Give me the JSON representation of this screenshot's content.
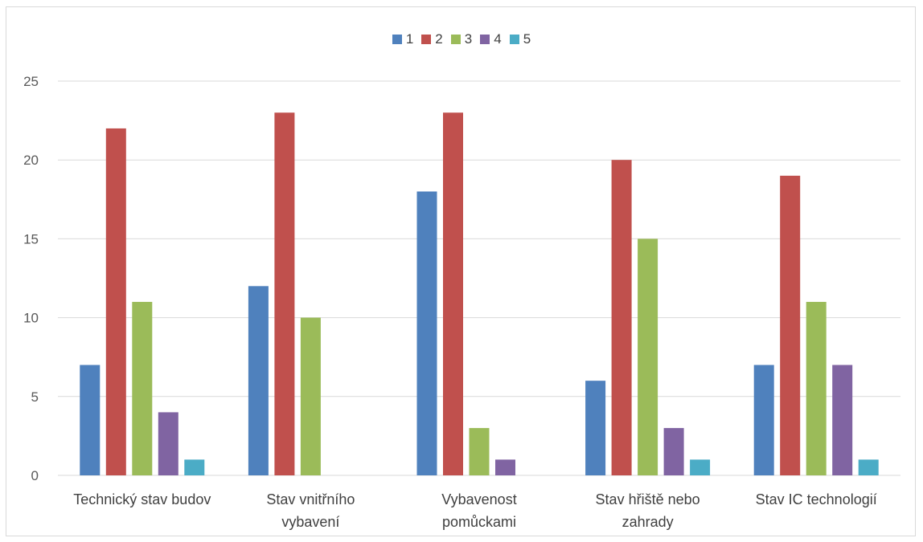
{
  "chart_data": {
    "type": "bar",
    "title": "",
    "xlabel": "",
    "ylabel": "",
    "ylim": [
      0,
      25
    ],
    "yticks": [
      0,
      5,
      10,
      15,
      20,
      25
    ],
    "grid": true,
    "legend_position": "top",
    "categories": [
      [
        "Technický stav budov"
      ],
      [
        "Stav vnitřního",
        "vybavení"
      ],
      [
        "Vybavenost",
        "pomůckami"
      ],
      [
        "Stav hřiště nebo",
        "zahrady"
      ],
      [
        "Stav IC technologií"
      ]
    ],
    "series": [
      {
        "name": "1",
        "color": "#4f81bd",
        "values": [
          7,
          12,
          18,
          6,
          7
        ]
      },
      {
        "name": "2",
        "color": "#c0504d",
        "values": [
          22,
          23,
          23,
          20,
          19
        ]
      },
      {
        "name": "3",
        "color": "#9bbb59",
        "values": [
          11,
          10,
          3,
          15,
          11
        ]
      },
      {
        "name": "4",
        "color": "#8064a2",
        "values": [
          4,
          0,
          1,
          3,
          7
        ]
      },
      {
        "name": "5",
        "color": "#4bacc6",
        "values": [
          1,
          0,
          0,
          1,
          1
        ]
      }
    ]
  }
}
